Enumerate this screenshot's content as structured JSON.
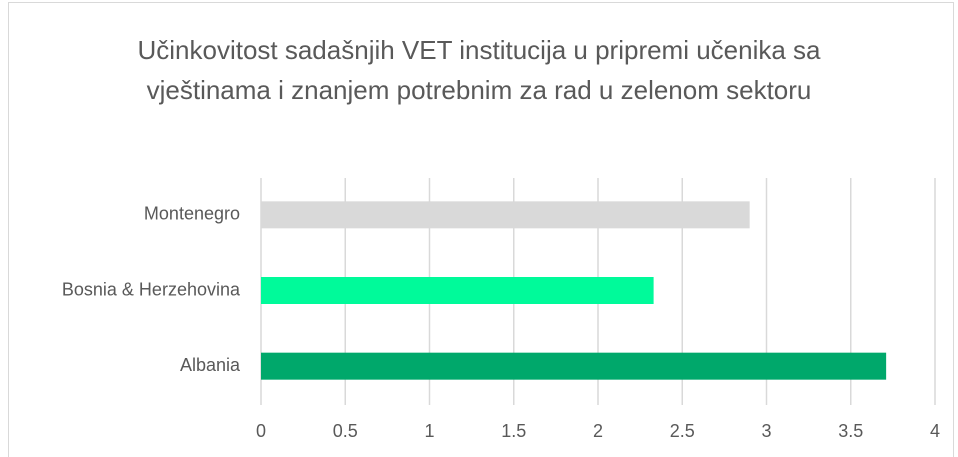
{
  "chart_data": {
    "type": "barh",
    "title": "Učinkovitost sadašnjih VET institucija u pripremi učenika sa vještinama i znanjem potrebnim za rad u zelenom sektoru",
    "categories": [
      "Montenegro",
      "Bosnia & Herzehovina",
      "Albania"
    ],
    "values": [
      2.9,
      2.33,
      3.71
    ],
    "colors": [
      "#d9d9d9",
      "#00fa9a",
      "#00a86b"
    ],
    "xlim": [
      0,
      4
    ],
    "xticks": [
      0,
      0.5,
      1,
      1.5,
      2,
      2.5,
      3,
      3.5,
      4
    ],
    "grid": true
  }
}
